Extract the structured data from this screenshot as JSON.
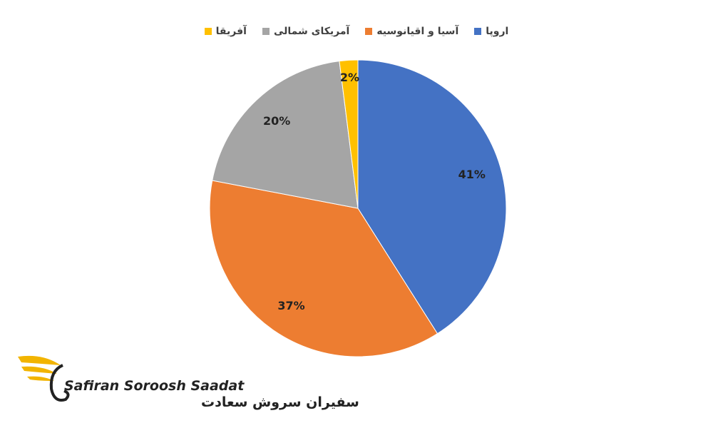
{
  "chart_data": {
    "type": "pie",
    "categories": [
      "اروپا",
      "آسیا و اقیانوسیه",
      "آمریکای شمالی",
      "آفریقا"
    ],
    "values": [
      41,
      37,
      20,
      2
    ],
    "value_labels": [
      "41%",
      "37%",
      "20%",
      "2%"
    ],
    "colors": [
      "#4472c4",
      "#ed7d31",
      "#a5a5a5",
      "#ffc000"
    ],
    "legend": "top"
  },
  "watermark": {
    "brand": "Safiran Soroosh Saadat",
    "brand_fa": "سفیران سروش سعادت"
  }
}
